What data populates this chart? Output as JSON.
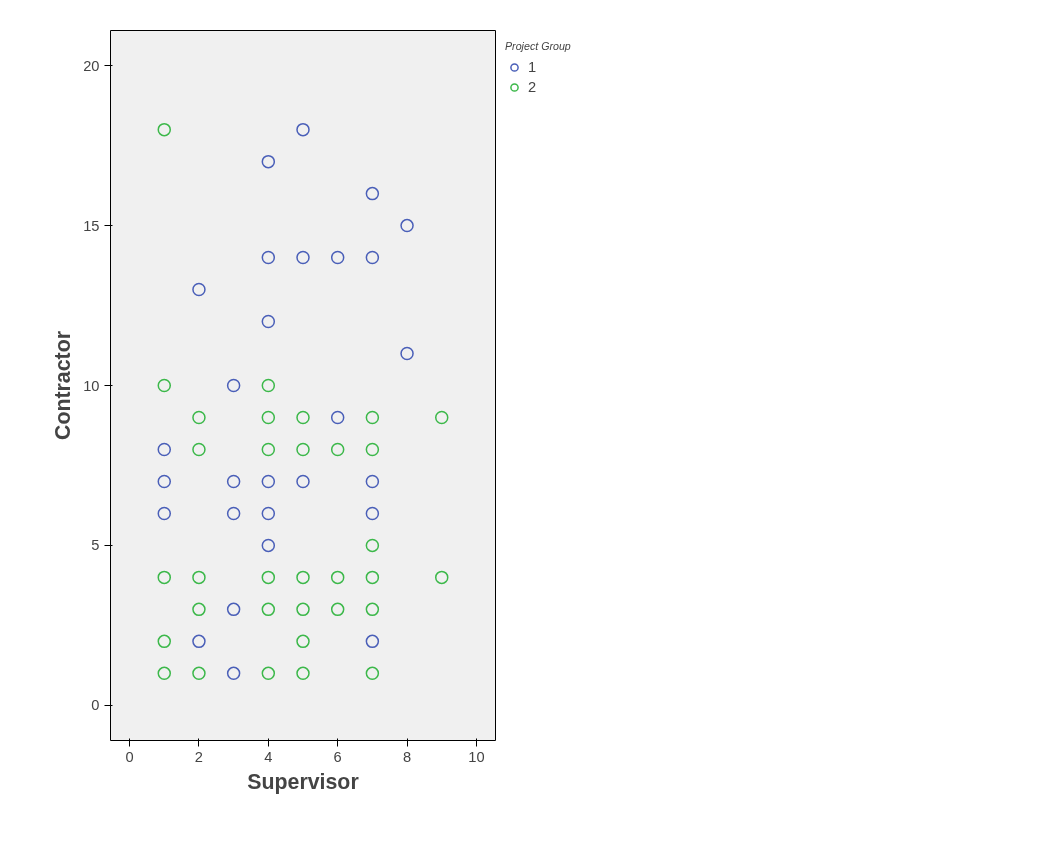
{
  "chart_data": {
    "type": "scatter",
    "xlabel": "Supervisor",
    "ylabel": "Contractor",
    "legend_title": "Project Group",
    "xlim": [
      -0.55,
      10.55
    ],
    "ylim": [
      -1.1,
      21.1
    ],
    "xticks": [
      0,
      2,
      4,
      6,
      8,
      10
    ],
    "yticks": [
      0,
      5,
      10,
      15,
      20
    ],
    "grid": false,
    "legend": "top right",
    "marker": "circle",
    "series": [
      {
        "name": "1",
        "color": "#4a5fb8",
        "x": [
          1,
          1,
          1,
          2,
          2,
          3,
          3,
          3,
          3,
          3,
          4,
          4,
          4,
          4,
          4,
          4,
          5,
          5,
          5,
          6,
          6,
          7,
          7,
          7,
          7,
          7,
          8,
          8
        ],
        "values": [
          8,
          7,
          6,
          13,
          2,
          10,
          7,
          6,
          3,
          1,
          17,
          14,
          12,
          7,
          6,
          5,
          18,
          14,
          7,
          14,
          9,
          16,
          14,
          7,
          6,
          2,
          15,
          11
        ]
      },
      {
        "name": "2",
        "color": "#3cb84a",
        "x": [
          1,
          1,
          1,
          1,
          1,
          2,
          2,
          2,
          2,
          2,
          4,
          4,
          4,
          4,
          4,
          4,
          5,
          5,
          5,
          5,
          5,
          5,
          6,
          6,
          6,
          7,
          7,
          7,
          7,
          7,
          7,
          9,
          9
        ],
        "values": [
          18,
          10,
          4,
          2,
          1,
          9,
          8,
          4,
          3,
          1,
          10,
          9,
          8,
          4,
          3,
          1,
          9,
          8,
          4,
          3,
          2,
          1,
          8,
          4,
          3,
          9,
          8,
          5,
          4,
          3,
          1,
          9,
          4
        ]
      }
    ]
  }
}
